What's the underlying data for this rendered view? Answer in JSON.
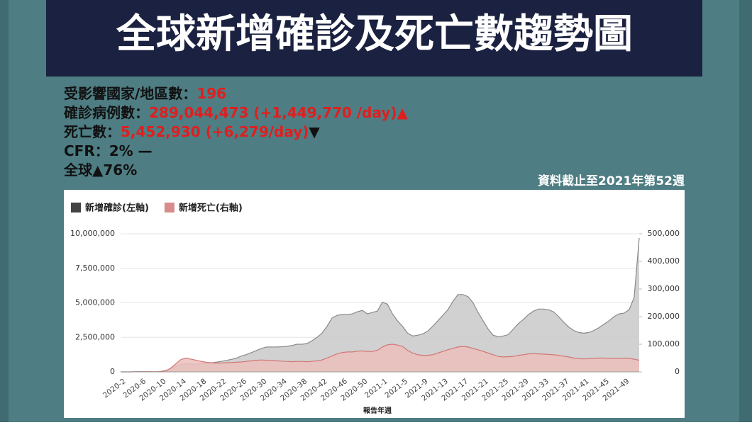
{
  "header": {
    "title": "全球新增確診及死亡數趨勢圖"
  },
  "stats": [
    {
      "label": "受影響國家/地區數：",
      "value": "196"
    },
    {
      "label": "確診病例數：",
      "value": "289,044,473 (+1,449,770 /day)▲"
    },
    {
      "label": "死亡數：",
      "value": "5,452,930 (+6,279/day)",
      "suffix": "▼"
    },
    {
      "label": "CFR：2% —"
    },
    {
      "label": "全球▲76%"
    }
  ],
  "as_of": "資料截止至2021年第52週",
  "chart_data": {
    "type": "area",
    "x_label": "報告年週",
    "categories": [
      "2020-2",
      null,
      null,
      null,
      "2020-6",
      null,
      null,
      null,
      "2020-10",
      null,
      null,
      null,
      "2020-14",
      null,
      null,
      null,
      "2020-18",
      null,
      null,
      null,
      "2020-22",
      null,
      null,
      null,
      "2020-26",
      null,
      null,
      null,
      "2020-30",
      null,
      null,
      null,
      "2020-34",
      null,
      null,
      null,
      "2020-38",
      null,
      null,
      null,
      "2020-42",
      null,
      null,
      null,
      "2020-46",
      null,
      null,
      null,
      "2020-50",
      null,
      null,
      null,
      "2021-1",
      null,
      null,
      null,
      "2021-5",
      null,
      null,
      null,
      "2021-9",
      null,
      null,
      null,
      "2021-13",
      null,
      null,
      null,
      "2021-17",
      null,
      null,
      null,
      "2021-21",
      null,
      null,
      null,
      "2021-25",
      null,
      null,
      null,
      "2021-29",
      null,
      null,
      null,
      "2021-33",
      null,
      null,
      null,
      "2021-37",
      null,
      null,
      null,
      "2021-41",
      null,
      null,
      null,
      "2021-45",
      null,
      null,
      null,
      "2021-49",
      null,
      null,
      null
    ],
    "series": [
      {
        "name": "新增確診(左軸)",
        "color": "#444444",
        "fill": "#c9c9c9",
        "line": "#8a8a8a",
        "axis": "y",
        "values": [
          0,
          0,
          1000,
          15000,
          20000,
          18000,
          8000,
          10000,
          30000,
          100000,
          250000,
          420000,
          550000,
          600000,
          570000,
          560000,
          590000,
          620000,
          660000,
          700000,
          760000,
          830000,
          900000,
          1000000,
          1150000,
          1250000,
          1400000,
          1550000,
          1700000,
          1800000,
          1800000,
          1800000,
          1820000,
          1850000,
          1900000,
          2000000,
          2000000,
          2050000,
          2250000,
          2500000,
          2800000,
          3300000,
          3900000,
          4100000,
          4150000,
          4150000,
          4200000,
          4350000,
          4450000,
          4200000,
          4300000,
          4400000,
          5050000,
          4900000,
          4200000,
          3700000,
          3300000,
          2800000,
          2600000,
          2650000,
          2750000,
          2950000,
          3300000,
          3700000,
          4100000,
          4500000,
          5100000,
          5600000,
          5600000,
          5450000,
          5000000,
          4300000,
          3700000,
          3100000,
          2650000,
          2550000,
          2600000,
          2700000,
          3100000,
          3500000,
          3800000,
          4150000,
          4400000,
          4550000,
          4550000,
          4500000,
          4350000,
          4000000,
          3600000,
          3250000,
          3000000,
          2850000,
          2800000,
          2850000,
          3000000,
          3200000,
          3450000,
          3700000,
          4000000,
          4200000,
          4250000,
          4500000,
          5400000,
          9700000
        ]
      },
      {
        "name": "新增死亡(右軸)",
        "color": "#d98b8b",
        "fill": "#ecc0bb",
        "line": "#d07676",
        "axis": "y2",
        "values": [
          0,
          0,
          0,
          300,
          600,
          900,
          700,
          500,
          1500,
          4000,
          14000,
          30000,
          45000,
          50000,
          46000,
          42000,
          38000,
          35000,
          33000,
          32000,
          32000,
          33000,
          34000,
          35000,
          36000,
          38000,
          40000,
          42000,
          43000,
          42000,
          41000,
          40000,
          39000,
          38000,
          37000,
          38000,
          38000,
          37000,
          38000,
          40000,
          43000,
          50000,
          58000,
          65000,
          70000,
          72000,
          72000,
          75000,
          76000,
          74000,
          74000,
          78000,
          90000,
          98000,
          100000,
          97000,
          92000,
          78000,
          68000,
          62000,
          60000,
          60000,
          62000,
          68000,
          74000,
          80000,
          85000,
          90000,
          92000,
          90000,
          85000,
          80000,
          74000,
          68000,
          62000,
          56000,
          54000,
          55000,
          56000,
          60000,
          62000,
          65000,
          66000,
          65000,
          64000,
          63000,
          62000,
          60000,
          57000,
          54000,
          50000,
          48000,
          47000,
          48000,
          49000,
          50000,
          50000,
          49000,
          48000,
          48000,
          50000,
          49000,
          46000,
          42000
        ]
      }
    ],
    "ylim": [
      0,
      10000000
    ],
    "yticks": [
      0,
      {
        "value": 2500000,
        "label": "2,500,000"
      },
      {
        "value": 5000000,
        "label": "5,000,000"
      },
      {
        "value": 7500000,
        "label": "7,500,000"
      },
      {
        "value": 10000000,
        "label": "10,000,000"
      }
    ],
    "y2lim": [
      0,
      500000
    ],
    "y2ticks": [
      0,
      {
        "value": 100000,
        "label": "100,000"
      },
      {
        "value": 200000,
        "label": "200,000"
      },
      {
        "value": 300000,
        "label": "300,000"
      },
      {
        "value": 400000,
        "label": "400,000"
      },
      {
        "value": 500000,
        "label": "500,000"
      }
    ],
    "grid": true,
    "legend": "top-left"
  }
}
